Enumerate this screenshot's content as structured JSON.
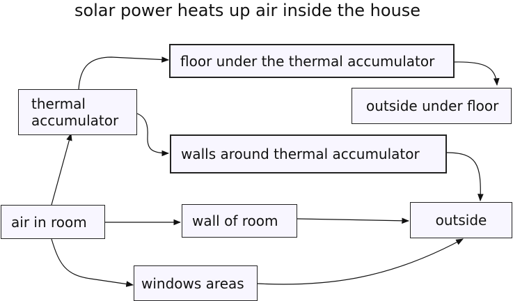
{
  "diagram": {
    "title": "solar power heats up air inside the house",
    "nodes": {
      "air_in_room": "air in room",
      "thermal_accumulator": "thermal\naccumulator",
      "floor_under": "floor under the thermal accumulator",
      "outside_under_floor": "outside under floor",
      "walls_around": "walls around thermal accumulator",
      "wall_of_room": "wall of room",
      "outside": "outside",
      "windows_areas": "windows areas"
    },
    "edges": [
      {
        "from": "air in room",
        "to": "thermal accumulator"
      },
      {
        "from": "thermal accumulator",
        "to": "floor under the thermal accumulator"
      },
      {
        "from": "thermal accumulator",
        "to": "walls around thermal accumulator"
      },
      {
        "from": "floor under the thermal accumulator",
        "to": "outside under floor"
      },
      {
        "from": "walls around thermal accumulator",
        "to": "outside"
      },
      {
        "from": "air in room",
        "to": "wall of room"
      },
      {
        "from": "wall of room",
        "to": "outside"
      },
      {
        "from": "air in room",
        "to": "windows areas"
      },
      {
        "from": "windows areas",
        "to": "outside"
      }
    ]
  }
}
